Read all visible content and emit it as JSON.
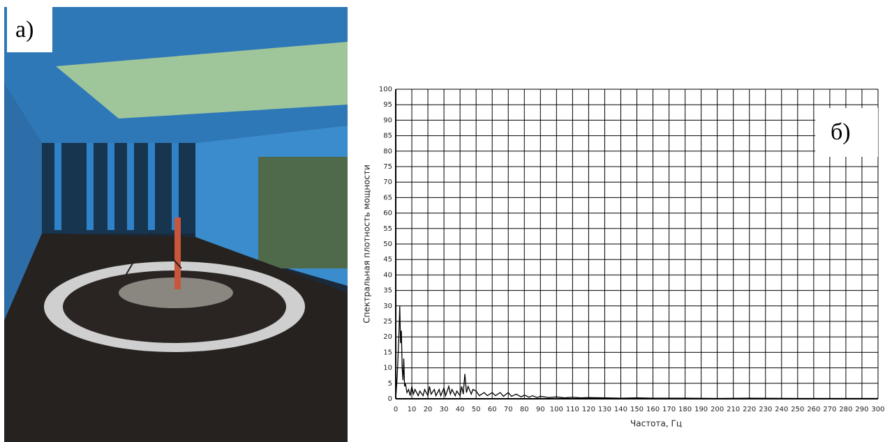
{
  "panel_a": {
    "label": "а)"
  },
  "chart_data": {
    "type": "line",
    "panel_label": "б)",
    "x_label": "Частота, Гц",
    "y_label": "Спектральная плотность мощности",
    "x": [
      0,
      1,
      2,
      2.5,
      3,
      3.5,
      4,
      4.5,
      5,
      5.5,
      6,
      7,
      8,
      9,
      10,
      11,
      12,
      14,
      15,
      17,
      18,
      20,
      21,
      22,
      24,
      25,
      27,
      28,
      30,
      31,
      33,
      34,
      35,
      37,
      38,
      40,
      41,
      42,
      43,
      44,
      45,
      47,
      48,
      50,
      52,
      55,
      57,
      60,
      62,
      65,
      67,
      70,
      72,
      75,
      78,
      80,
      83,
      85,
      88,
      90,
      95,
      100,
      105,
      110,
      115,
      120,
      130,
      140,
      150,
      160,
      180,
      200,
      220,
      250,
      280,
      300
    ],
    "values": [
      0,
      8,
      21,
      30,
      18,
      22,
      10,
      6,
      13,
      4,
      5,
      2,
      3,
      1,
      4,
      1.5,
      3,
      1,
      2.5,
      1,
      3,
      1,
      4,
      1.5,
      3,
      1,
      3,
      1,
      3.5,
      1,
      4,
      1.5,
      3,
      1,
      2.5,
      1,
      4,
      1.5,
      8,
      2,
      4,
      1.5,
      3,
      2.5,
      1,
      2,
      1,
      2,
      1,
      2,
      0.8,
      2,
      0.8,
      1.5,
      0.6,
      1.2,
      0.5,
      1,
      0.4,
      0.8,
      0.4,
      0.6,
      0.3,
      0.5,
      0.3,
      0.4,
      0.3,
      0.2,
      0.3,
      0.2,
      0.2,
      0.1,
      0.2,
      0.1,
      0.1,
      0.1
    ],
    "color": "#000000",
    "xlim": [
      0,
      300
    ],
    "xticks": [
      0,
      10,
      20,
      30,
      40,
      50,
      60,
      70,
      80,
      90,
      100,
      110,
      120,
      130,
      140,
      150,
      160,
      170,
      180,
      190,
      200,
      210,
      220,
      230,
      240,
      250,
      260,
      270,
      280,
      290,
      300
    ],
    "ylim": [
      0,
      100
    ],
    "yticks": [
      0,
      5,
      10,
      15,
      20,
      25,
      30,
      35,
      40,
      45,
      50,
      55,
      60,
      65,
      70,
      75,
      80,
      85,
      90,
      95,
      100
    ],
    "grid": true
  }
}
